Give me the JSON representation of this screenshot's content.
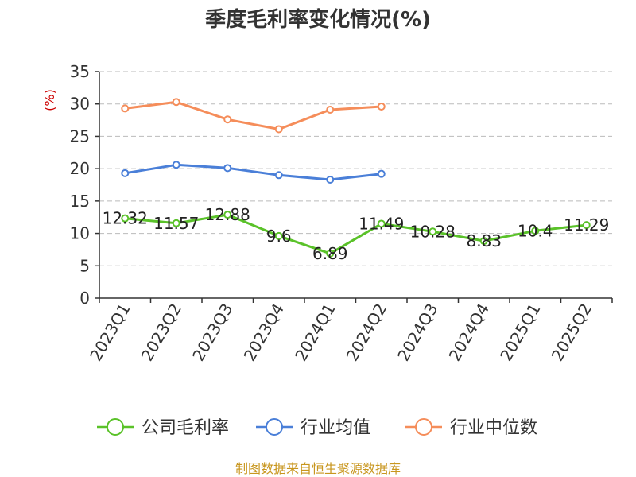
{
  "chart_data": {
    "type": "line",
    "title": "季度毛利率变化情况(%)",
    "ylabel": "(%)",
    "ylim": [
      0,
      35
    ],
    "yticks": [
      0,
      5,
      10,
      15,
      20,
      25,
      30,
      35
    ],
    "categories": [
      "2023Q1",
      "2023Q2",
      "2023Q3",
      "2023Q4",
      "2024Q1",
      "2024Q2",
      "2024Q3",
      "2024Q4",
      "2025Q1",
      "2025Q2"
    ],
    "grid": true,
    "legend_position": "bottom",
    "series": [
      {
        "name": "公司毛利率",
        "color": "#5ac229",
        "values": [
          12.32,
          11.57,
          12.88,
          9.6,
          6.89,
          11.49,
          10.28,
          8.83,
          10.4,
          11.29
        ],
        "labels": [
          "12.32",
          "11.57",
          "12.88",
          "9.6",
          "6.89",
          "11.49",
          "10.28",
          "8.83",
          "10.4",
          "11.29"
        ]
      },
      {
        "name": "行业均值",
        "color": "#4a7fd8",
        "values": [
          19.3,
          20.6,
          20.1,
          19.0,
          18.3,
          19.2,
          null,
          null,
          null,
          null
        ]
      },
      {
        "name": "行业中位数",
        "color": "#f58d5a",
        "values": [
          29.3,
          30.3,
          27.6,
          26.1,
          29.1,
          29.6,
          null,
          null,
          null,
          null
        ]
      }
    ],
    "source": "制图数据来自恒生聚源数据库"
  }
}
